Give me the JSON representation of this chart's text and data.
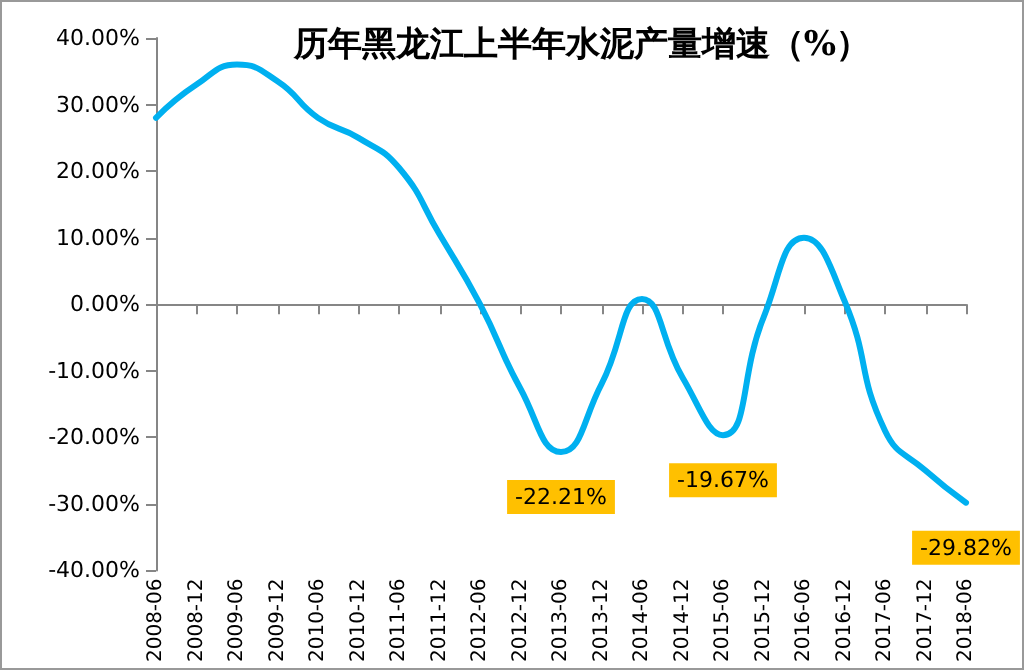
{
  "chart_data": {
    "type": "line",
    "title": "历年黑龙江上半年水泥产量增速（%）",
    "categories": [
      "2008-06",
      "2008-12",
      "2009-06",
      "2009-12",
      "2010-06",
      "2010-12",
      "2011-06",
      "2011-12",
      "2012-06",
      "2012-12",
      "2013-06",
      "2013-12",
      "2014-06",
      "2014-12",
      "2015-06",
      "2015-12",
      "2016-06",
      "2016-12",
      "2017-06",
      "2017-12",
      "2018-06"
    ],
    "series": [
      {
        "color": "#00b0f0",
        "values": [
          28,
          33,
          36,
          33.5,
          28,
          25,
          20.5,
          10.5,
          0,
          -12.7,
          -22.21,
          -12,
          0.8,
          -11,
          -19.67,
          -2,
          10,
          0.5,
          -19,
          -25,
          -29.82
        ],
        "value_labels": [
          null,
          null,
          null,
          null,
          null,
          null,
          null,
          null,
          null,
          null,
          "-22.21%",
          null,
          null,
          null,
          "-19.67%",
          null,
          null,
          null,
          null,
          null,
          "-29.82%"
        ]
      }
    ],
    "ylim": [
      -40,
      40
    ],
    "yticks": [
      {
        "value": -40,
        "label": "-40.00%"
      },
      {
        "value": -30,
        "label": "-30.00%"
      },
      {
        "value": -20,
        "label": "-20.00%"
      },
      {
        "value": -10,
        "label": "-10.00%"
      },
      {
        "value": 0,
        "label": "0.00%"
      },
      {
        "value": 10,
        "label": "10.00%"
      },
      {
        "value": 20,
        "label": "20.00%"
      },
      {
        "value": 30,
        "label": "30.00%"
      },
      {
        "value": 40,
        "label": "40.00%"
      }
    ],
    "marker": "none",
    "line_style": "solid"
  }
}
